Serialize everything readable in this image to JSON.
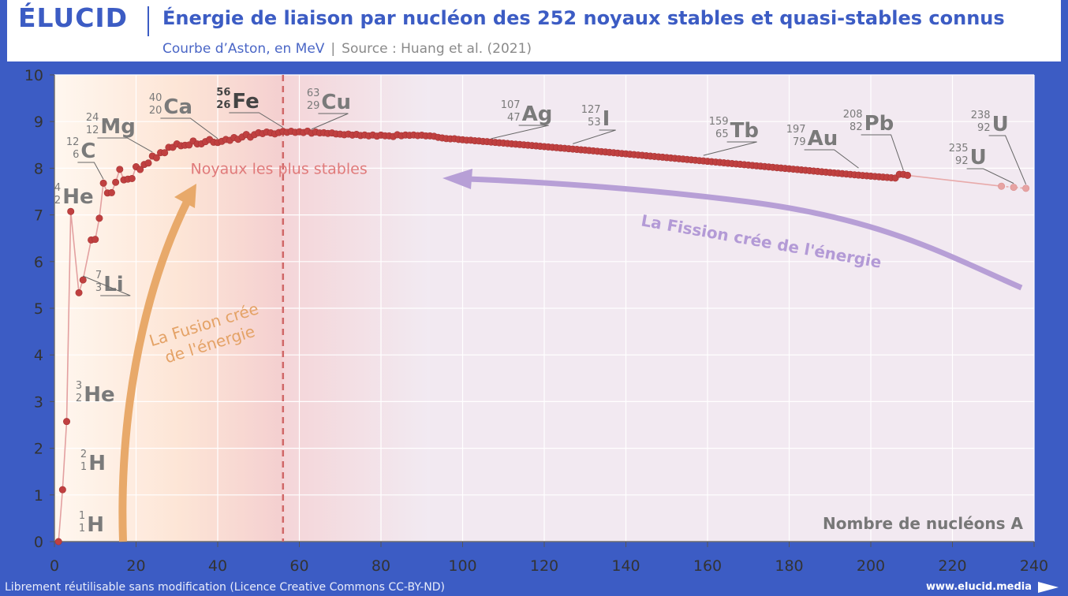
{
  "header": {
    "logo": "ÉLUCID",
    "title": "Énergie de liaison par nucléon des 252 noyaux stables et quasi-stables connus",
    "subtitle": "Courbe d’Aston, en MeV",
    "separator": "|",
    "source": "Source : Huang et al. (2021)"
  },
  "footer": {
    "license": "Librement réutilisable sans modification (Licence Creative Commons CC-BY-ND)",
    "website": "www.elucid.media"
  },
  "colors": {
    "brand": "#3c5cc4",
    "points": "#c04040",
    "fusion": "#e8a96a",
    "fission": "#b79fd6",
    "most_stable_line": "#d06868"
  },
  "chart_data": {
    "type": "scatter",
    "xlabel": "Nombre de nucléons A",
    "ylabel": "",
    "xlim": [
      0,
      240
    ],
    "ylim": [
      0,
      10
    ],
    "xticks": [
      0,
      20,
      40,
      60,
      80,
      100,
      120,
      140,
      160,
      180,
      200,
      220,
      240
    ],
    "yticks": [
      0,
      1,
      2,
      3,
      4,
      5,
      6,
      7,
      8,
      9,
      10
    ],
    "grid": true,
    "most_stable": {
      "x": 56,
      "label": "Noyaux les plus stables"
    },
    "fusion_label": [
      "La Fusion crée",
      "de l'énergie"
    ],
    "fission_label": "La Fission crée de l'énergie",
    "series": [
      {
        "x": [
          1,
          2,
          3,
          4,
          6,
          7,
          9,
          10,
          11,
          12,
          13,
          14,
          15,
          16,
          17,
          18,
          19,
          20,
          21,
          22,
          23,
          24,
          25,
          26,
          27,
          28,
          29,
          30,
          31,
          32,
          33,
          34,
          35,
          36,
          37,
          38,
          39,
          40,
          41,
          42,
          43,
          44,
          45,
          46,
          47,
          48,
          49,
          50,
          51,
          52,
          53,
          54,
          55,
          56,
          57,
          58,
          59,
          60,
          61,
          62,
          63,
          64,
          65,
          66,
          67,
          68,
          69,
          70,
          71,
          72,
          73,
          74,
          75,
          76,
          77,
          78,
          79,
          80,
          81,
          82,
          83,
          84,
          85,
          86,
          87,
          88,
          89,
          90,
          91,
          92,
          93,
          94,
          95,
          96,
          97,
          98,
          99,
          100,
          101,
          102,
          103,
          104,
          105,
          106,
          107,
          108,
          109,
          110,
          111,
          112,
          113,
          114,
          115,
          116,
          117,
          118,
          119,
          120,
          121,
          122,
          123,
          124,
          125,
          126,
          127,
          128,
          129,
          130,
          131,
          132,
          133,
          134,
          135,
          136,
          137,
          138,
          139,
          140,
          141,
          142,
          143,
          144,
          145,
          146,
          147,
          148,
          149,
          150,
          151,
          152,
          153,
          154,
          155,
          156,
          157,
          158,
          159,
          160,
          161,
          162,
          163,
          164,
          165,
          166,
          167,
          168,
          169,
          170,
          171,
          172,
          173,
          174,
          175,
          176,
          177,
          178,
          179,
          180,
          181,
          182,
          183,
          184,
          185,
          186,
          187,
          188,
          189,
          190,
          191,
          192,
          193,
          194,
          195,
          196,
          197,
          198,
          199,
          200,
          201,
          202,
          203,
          204,
          205,
          206,
          207,
          208,
          209
        ],
        "values": [
          0,
          1.112,
          2.573,
          7.074,
          5.332,
          5.606,
          6.463,
          6.475,
          6.928,
          7.68,
          7.47,
          7.476,
          7.699,
          7.976,
          7.751,
          7.767,
          7.779,
          8.032,
          7.972,
          8.08,
          8.112,
          8.261,
          8.224,
          8.334,
          8.332,
          8.448,
          8.449,
          8.521,
          8.481,
          8.493,
          8.498,
          8.584,
          8.52,
          8.522,
          8.57,
          8.614,
          8.557,
          8.551,
          8.576,
          8.616,
          8.597,
          8.658,
          8.619,
          8.669,
          8.723,
          8.666,
          8.72,
          8.76,
          8.742,
          8.776,
          8.758,
          8.736,
          8.765,
          8.79,
          8.77,
          8.792,
          8.768,
          8.781,
          8.765,
          8.795,
          8.752,
          8.777,
          8.757,
          8.76,
          8.746,
          8.756,
          8.735,
          8.73,
          8.718,
          8.732,
          8.71,
          8.725,
          8.701,
          8.712,
          8.694,
          8.712,
          8.688,
          8.71,
          8.696,
          8.693,
          8.68,
          8.718,
          8.697,
          8.712,
          8.705,
          8.712,
          8.7,
          8.708,
          8.694,
          8.693,
          8.685,
          8.662,
          8.649,
          8.635,
          8.63,
          8.632,
          8.617,
          8.61,
          8.601,
          8.6,
          8.589,
          8.585,
          8.574,
          8.57,
          8.56,
          8.553,
          8.545,
          8.539,
          8.531,
          8.523,
          8.516,
          8.509,
          8.501,
          8.494,
          8.486,
          8.479,
          8.471,
          8.463,
          8.456,
          8.448,
          8.441,
          8.433,
          8.426,
          8.418,
          8.41,
          8.403,
          8.395,
          8.388,
          8.38,
          8.372,
          8.364,
          8.356,
          8.348,
          8.34,
          8.332,
          8.324,
          8.316,
          8.308,
          8.3,
          8.292,
          8.284,
          8.276,
          8.268,
          8.26,
          8.252,
          8.244,
          8.236,
          8.228,
          8.22,
          8.212,
          8.204,
          8.196,
          8.188,
          8.18,
          8.172,
          8.164,
          8.156,
          8.148,
          8.14,
          8.132,
          8.124,
          8.116,
          8.108,
          8.1,
          8.092,
          8.084,
          8.076,
          8.068,
          8.06,
          8.052,
          8.044,
          8.036,
          8.028,
          8.02,
          8.012,
          8.004,
          7.996,
          7.988,
          7.98,
          7.972,
          7.964,
          7.956,
          7.948,
          7.94,
          7.932,
          7.924,
          7.916,
          7.908,
          7.9,
          7.892,
          7.884,
          7.876,
          7.868,
          7.86,
          7.852,
          7.845,
          7.838,
          7.831,
          7.824,
          7.817,
          7.81,
          7.803,
          7.796,
          7.79,
          7.87,
          7.867,
          7.848
        ]
      },
      {
        "quasi_stable": true,
        "x": [
          232,
          235,
          238
        ],
        "values": [
          7.615,
          7.591,
          7.57
        ]
      }
    ],
    "annotations": [
      {
        "sym": "H",
        "mass": "1",
        "z": "1",
        "x": 1,
        "y": 0
      },
      {
        "sym": "H",
        "mass": "2",
        "z": "1",
        "x": 2,
        "y": 1.112
      },
      {
        "sym": "He",
        "mass": "3",
        "z": "2",
        "x": 3,
        "y": 2.573
      },
      {
        "sym": "He",
        "mass": "4",
        "z": "2",
        "x": 4,
        "y": 7.074
      },
      {
        "sym": "Li",
        "mass": "7",
        "z": "3",
        "x": 7,
        "y": 5.606
      },
      {
        "sym": "C",
        "mass": "12",
        "z": "6",
        "x": 12,
        "y": 7.68
      },
      {
        "sym": "Mg",
        "mass": "24",
        "z": "12",
        "x": 24,
        "y": 8.261
      },
      {
        "sym": "Ca",
        "mass": "40",
        "z": "20",
        "x": 40,
        "y": 8.551
      },
      {
        "sym": "Fe",
        "mass": "56",
        "z": "26",
        "x": 56,
        "y": 8.79
      },
      {
        "sym": "Cu",
        "mass": "63",
        "z": "29",
        "x": 63,
        "y": 8.752
      },
      {
        "sym": "Ag",
        "mass": "107",
        "z": "47",
        "x": 107,
        "y": 8.55
      },
      {
        "sym": "I",
        "mass": "127",
        "z": "53",
        "x": 127,
        "y": 8.44
      },
      {
        "sym": "Tb",
        "mass": "159",
        "z": "65",
        "x": 159,
        "y": 8.19
      },
      {
        "sym": "Au",
        "mass": "197",
        "z": "79",
        "x": 197,
        "y": 7.92
      },
      {
        "sym": "Pb",
        "mass": "208",
        "z": "82",
        "x": 208,
        "y": 7.867
      },
      {
        "sym": "U",
        "mass": "235",
        "z": "92",
        "x": 235,
        "y": 7.591
      },
      {
        "sym": "U",
        "mass": "238",
        "z": "92",
        "x": 238,
        "y": 7.57
      }
    ]
  }
}
